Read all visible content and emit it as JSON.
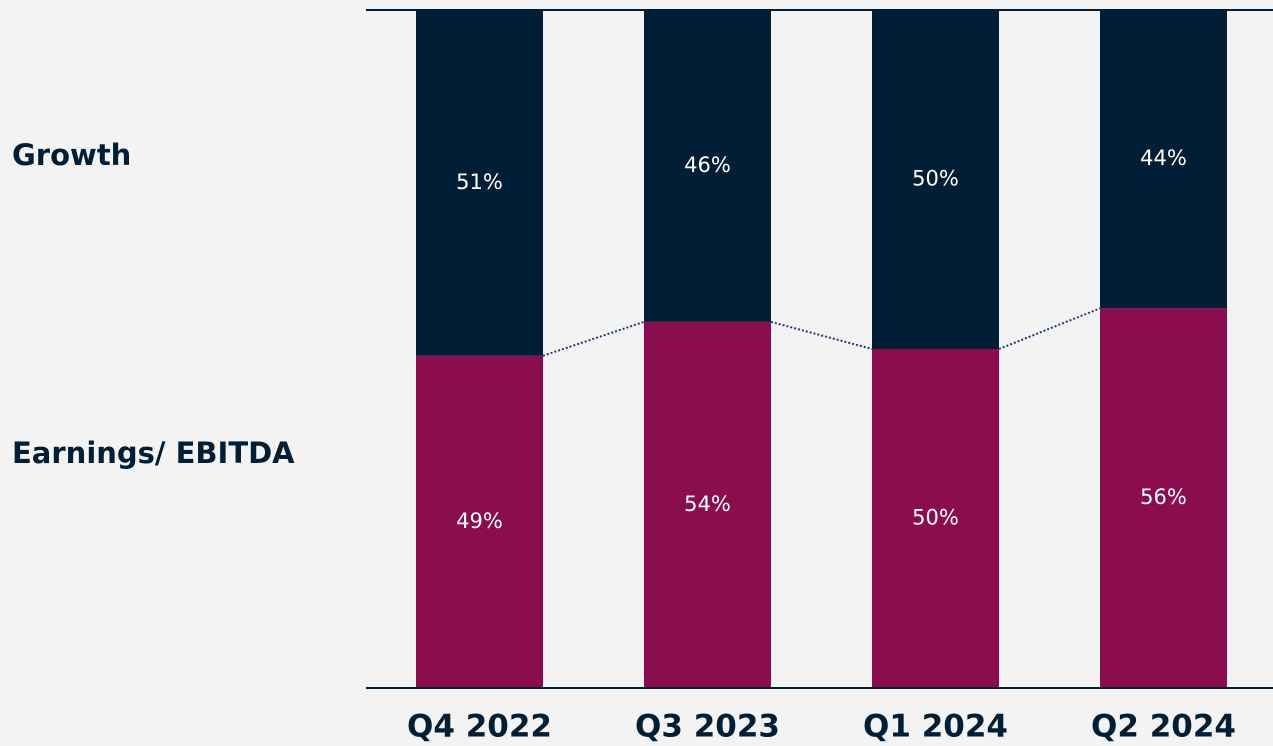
{
  "chart_data": {
    "type": "stacked-bar",
    "categories": [
      "Q4 2022",
      "Q3 2023",
      "Q1 2024",
      "Q2 2024"
    ],
    "series": [
      {
        "name": "Earnings/ EBITDA",
        "color": "#8a0d4e",
        "values": [
          49,
          54,
          50,
          56
        ],
        "value_labels": [
          "49%",
          "54%",
          "50%",
          "56%"
        ]
      },
      {
        "name": "Growth",
        "color": "#001f36",
        "values": [
          51,
          46,
          50,
          44
        ],
        "value_labels": [
          "51%",
          "46%",
          "50%",
          "44%"
        ]
      }
    ],
    "ylim": [
      0,
      100
    ]
  }
}
